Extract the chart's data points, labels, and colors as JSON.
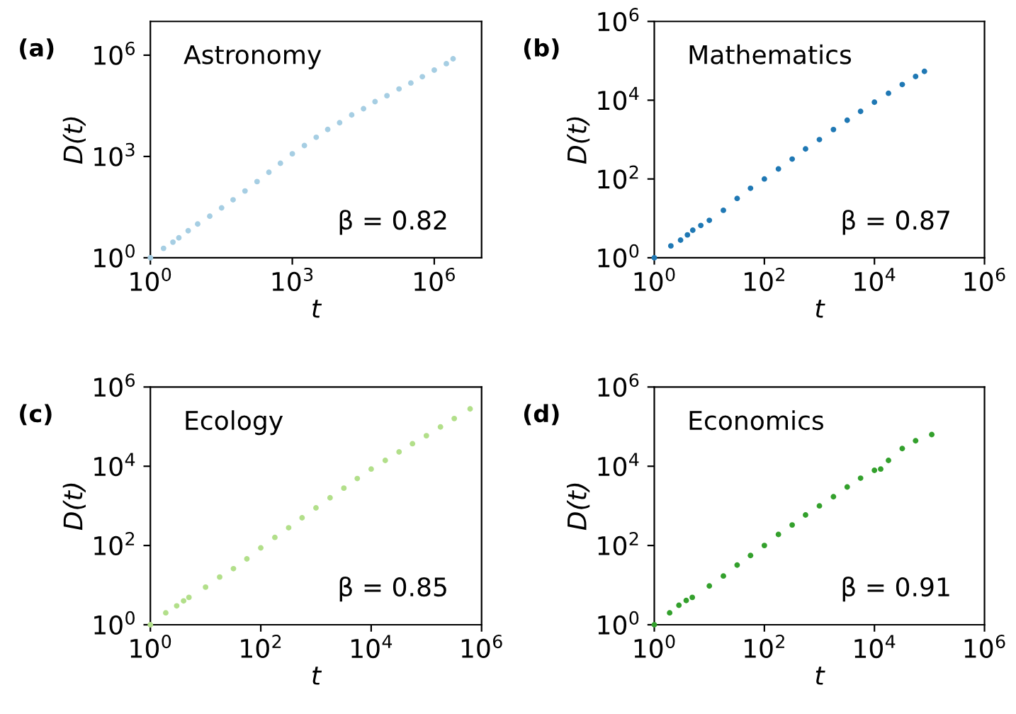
{
  "chart_data": [
    {
      "type": "scatter",
      "xlabel": "t",
      "ylabel": "D(t)",
      "annotations": [
        "(a)",
        "Astronomy",
        "β = 0.82"
      ],
      "log": "xy",
      "marker": "circle",
      "xlim": [
        1,
        10000000
      ],
      "ylim": [
        1,
        10000000
      ],
      "xticks": [
        {
          "value": 1,
          "label": "10$^{0}$"
        },
        {
          "value": 1000,
          "label": "10$^{3}$"
        },
        {
          "value": 1000000,
          "label": "10$^{6}$"
        }
      ],
      "yticks": [
        {
          "value": 1,
          "label": "10$^{0}$"
        },
        {
          "value": 1000,
          "label": "10$^{3}$"
        },
        {
          "value": 1000000,
          "label": "10$^{6}$"
        }
      ],
      "series": [
        {
          "color": "#a6cee3",
          "x": [
            1,
            1.9,
            3,
            4,
            6.3,
            10,
            18,
            32,
            56,
            100,
            180,
            320,
            560,
            1000,
            1800,
            3200,
            5600,
            10000,
            18000,
            32000,
            56000,
            100000,
            180000,
            320000,
            560000,
            1000000,
            1800000,
            2500000
          ],
          "values": [
            1,
            1.9,
            2.9,
            3.9,
            6.3,
            10,
            17,
            30,
            52,
            95,
            180,
            340,
            630,
            1200,
            2100,
            3700,
            6300,
            10000,
            17000,
            26000,
            42000,
            63000,
            100000,
            150000,
            230000,
            360000,
            560000,
            780000
          ]
        }
      ]
    },
    {
      "type": "scatter",
      "xlabel": "t",
      "ylabel": "D(t)",
      "annotations": [
        "(b)",
        "Mathematics",
        "β = 0.87"
      ],
      "log": "xy",
      "marker": "circle",
      "xlim": [
        1,
        1000000
      ],
      "ylim": [
        1,
        1000000
      ],
      "xticks": [
        {
          "value": 1,
          "label": "10$^{0}$"
        },
        {
          "value": 100,
          "label": "10$^{2}$"
        },
        {
          "value": 10000,
          "label": "10$^{4}$"
        },
        {
          "value": 1000000,
          "label": "10$^{6}$"
        }
      ],
      "yticks": [
        {
          "value": 1,
          "label": "10$^{0}$"
        },
        {
          "value": 100,
          "label": "10$^{2}$"
        },
        {
          "value": 10000,
          "label": "10$^{4}$"
        },
        {
          "value": 1000000,
          "label": "10$^{6}$"
        }
      ],
      "series": [
        {
          "color": "#1f78b4",
          "x": [
            1,
            2,
            3,
            4,
            5,
            7,
            10,
            18,
            32,
            56,
            100,
            180,
            320,
            560,
            1000,
            1800,
            3200,
            5600,
            10000,
            18000,
            32000,
            56000,
            81000
          ],
          "values": [
            1,
            2,
            2.8,
            3.8,
            5,
            6.6,
            8.9,
            16,
            32,
            58,
            100,
            180,
            320,
            580,
            1000,
            1800,
            3100,
            5200,
            8900,
            15000,
            25000,
            40000,
            54000
          ]
        }
      ]
    },
    {
      "type": "scatter",
      "xlabel": "t",
      "ylabel": "D(t)",
      "annotations": [
        "(c)",
        "Ecology",
        "β = 0.85"
      ],
      "log": "xy",
      "marker": "circle",
      "xlim": [
        1,
        1000000
      ],
      "ylim": [
        1,
        1000000
      ],
      "xticks": [
        {
          "value": 1,
          "label": "10$^{0}$"
        },
        {
          "value": 100,
          "label": "10$^{2}$"
        },
        {
          "value": 10000,
          "label": "10$^{4}$"
        },
        {
          "value": 1000000,
          "label": "10$^{6}$"
        }
      ],
      "yticks": [
        {
          "value": 1,
          "label": "10$^{0}$"
        },
        {
          "value": 100,
          "label": "10$^{2}$"
        },
        {
          "value": 10000,
          "label": "10$^{4}$"
        },
        {
          "value": 1000000,
          "label": "10$^{6}$"
        }
      ],
      "series": [
        {
          "color": "#b2df8a",
          "x": [
            1,
            1.9,
            3,
            4,
            5,
            10,
            18,
            32,
            56,
            100,
            180,
            320,
            560,
            1000,
            1800,
            3200,
            5600,
            10000,
            18000,
            32000,
            56000,
            100000,
            180000,
            320000,
            620000
          ],
          "values": [
            1,
            2,
            3,
            4,
            4.9,
            8.9,
            16,
            26,
            46,
            87,
            160,
            280,
            500,
            890,
            1600,
            2800,
            4900,
            8500,
            14000,
            23000,
            37000,
            59000,
            98000,
            160000,
            280000
          ]
        }
      ]
    },
    {
      "type": "scatter",
      "xlabel": "t",
      "ylabel": "D(t)",
      "annotations": [
        "(d)",
        "Economics",
        "β = 0.91"
      ],
      "log": "xy",
      "marker": "circle",
      "xlim": [
        1,
        1000000
      ],
      "ylim": [
        1,
        1000000
      ],
      "xticks": [
        {
          "value": 1,
          "label": "10$^{0}$"
        },
        {
          "value": 100,
          "label": "10$^{2}$"
        },
        {
          "value": 10000,
          "label": "10$^{4}$"
        },
        {
          "value": 1000000,
          "label": "10$^{6}$"
        }
      ],
      "yticks": [
        {
          "value": 1,
          "label": "10$^{0}$"
        },
        {
          "value": 100,
          "label": "10$^{2}$"
        },
        {
          "value": 10000,
          "label": "10$^{4}$"
        },
        {
          "value": 1000000,
          "label": "10$^{6}$"
        }
      ],
      "series": [
        {
          "color": "#33a02c",
          "x": [
            1,
            1.9,
            2.8,
            3.8,
            4.9,
            10,
            18,
            32,
            56,
            100,
            180,
            320,
            560,
            1000,
            1800,
            3200,
            5600,
            10000,
            13000,
            18000,
            32000,
            56000,
            110000
          ],
          "values": [
            1,
            2,
            3.1,
            4.1,
            4.9,
            9.5,
            17,
            32,
            56,
            100,
            190,
            330,
            590,
            1000,
            1700,
            3000,
            5000,
            7900,
            8500,
            14000,
            28000,
            44000,
            63000
          ]
        }
      ]
    }
  ]
}
